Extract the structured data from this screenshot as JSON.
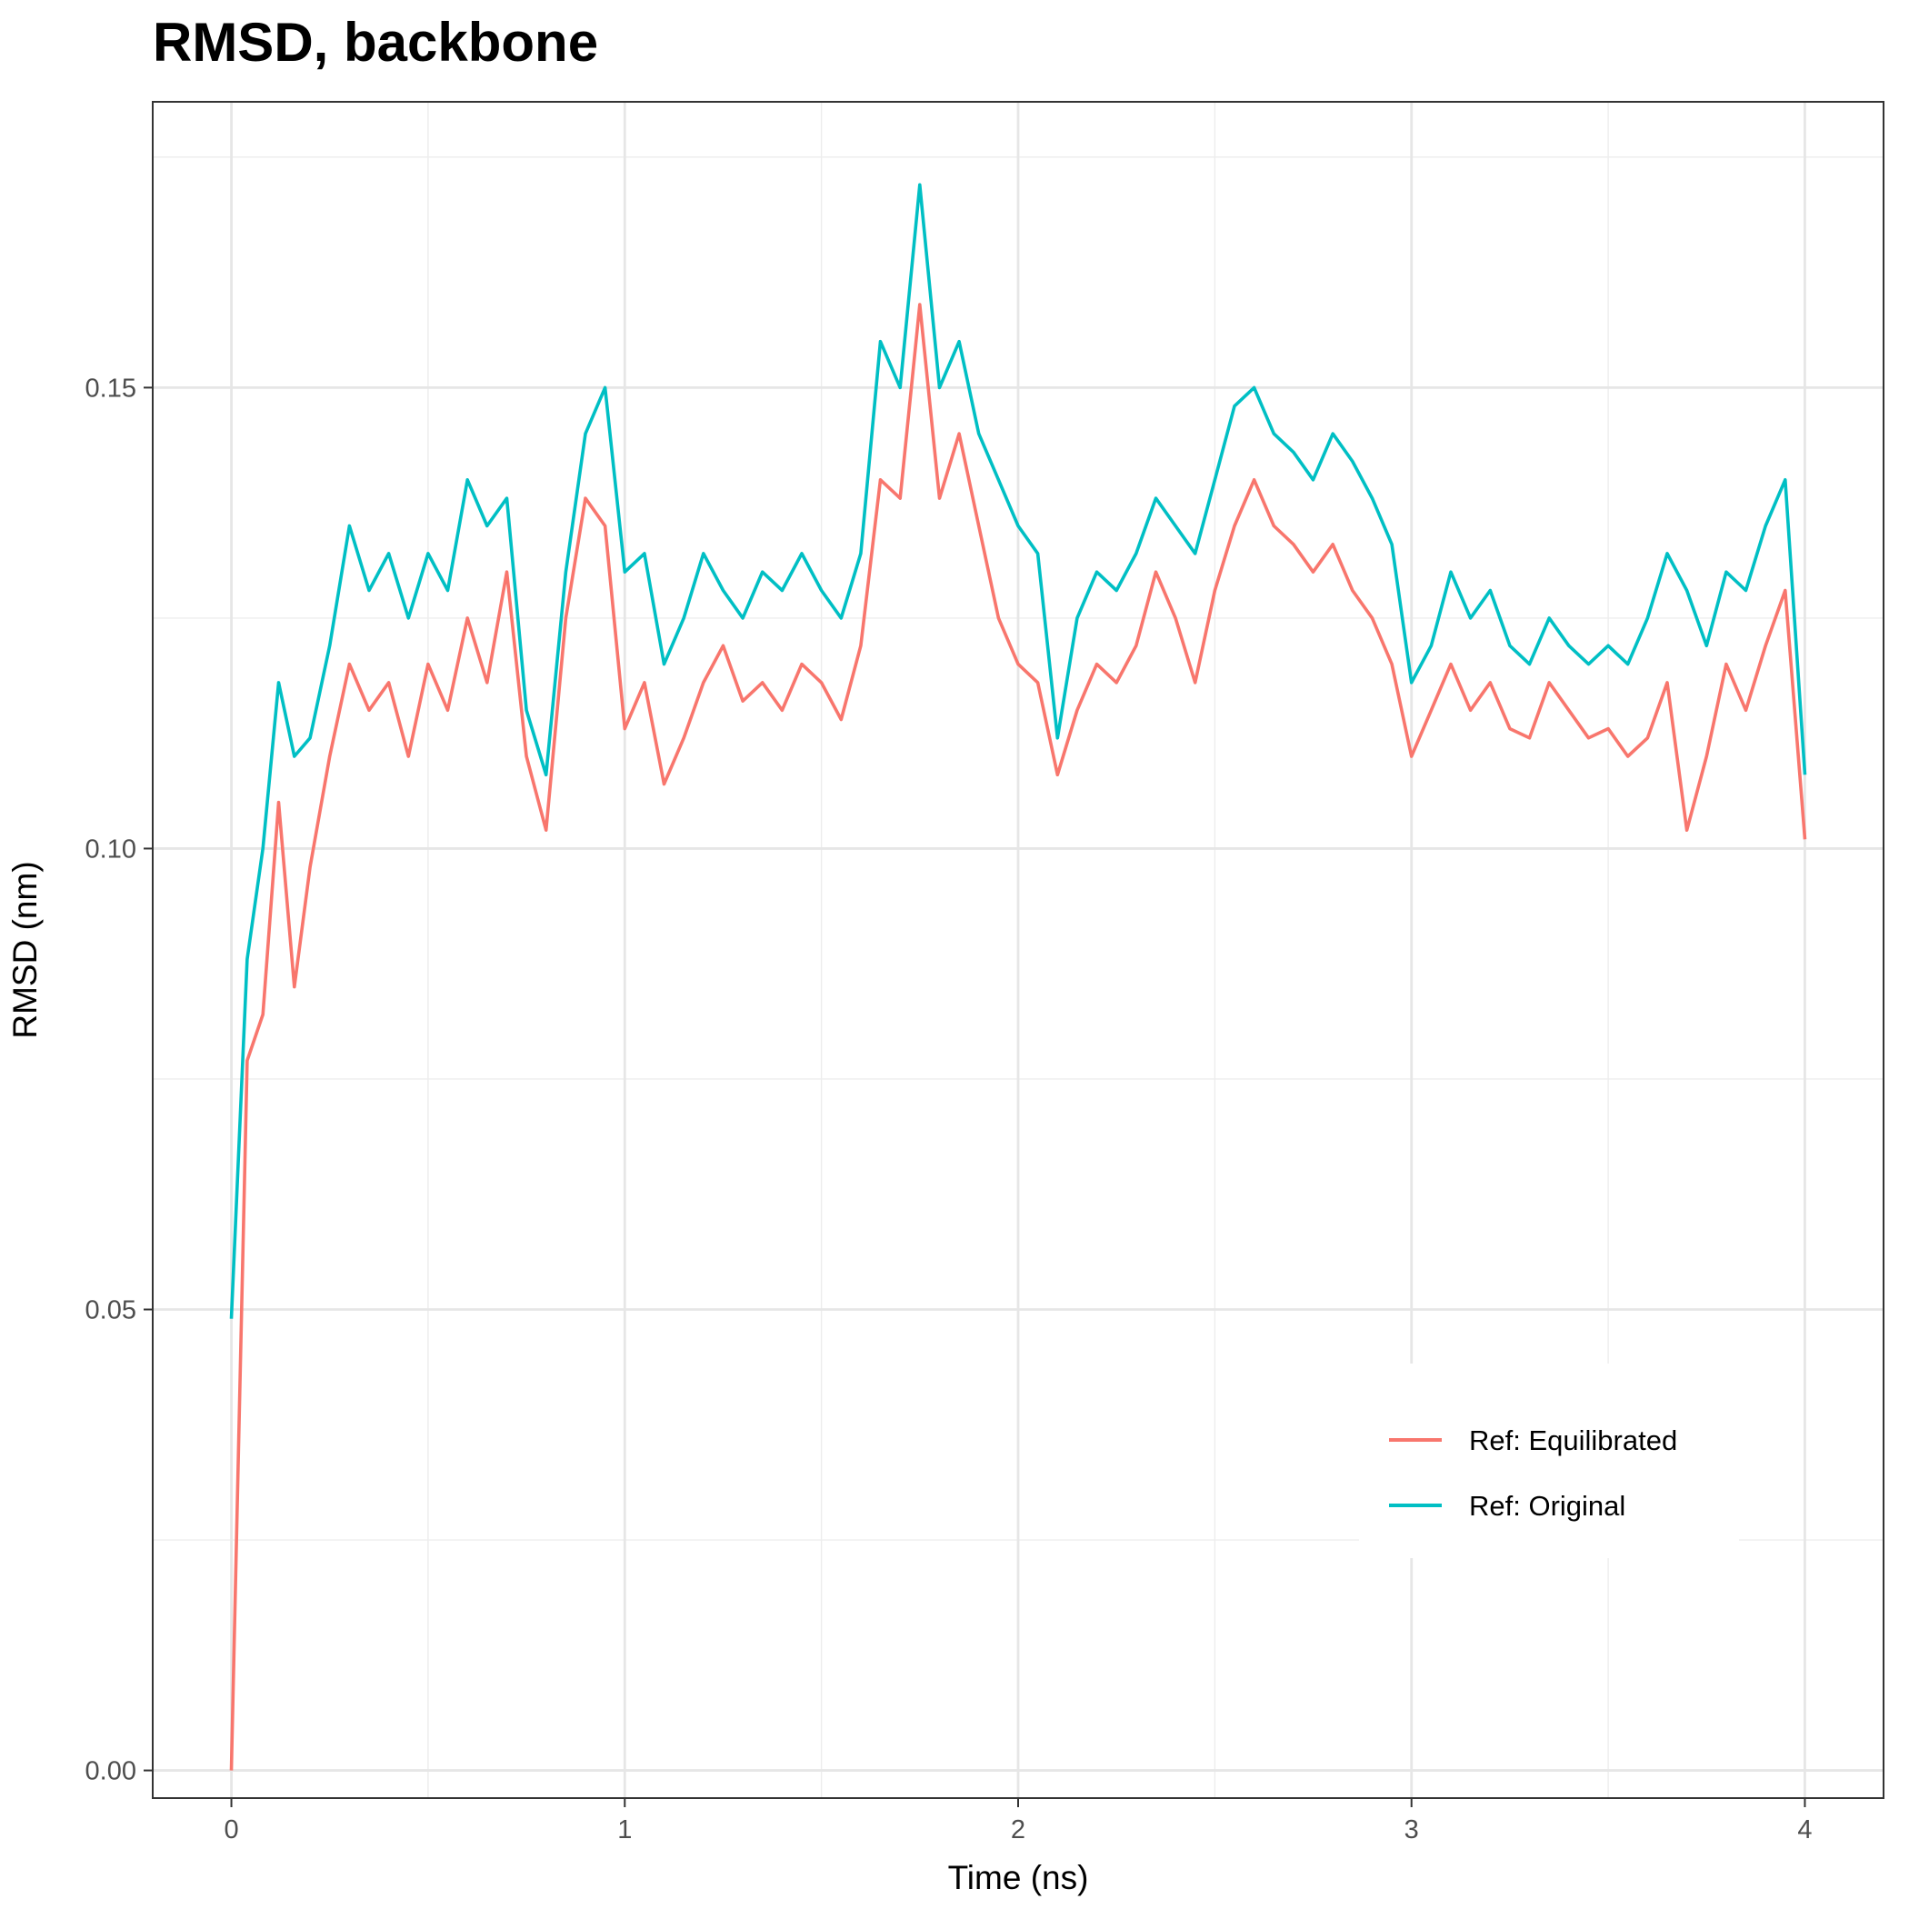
{
  "chart_data": {
    "type": "line",
    "title": "RMSD, backbone",
    "xlabel": "Time (ns)",
    "ylabel": "RMSD (nm)",
    "xlim": [
      -0.2,
      4.2
    ],
    "ylim": [
      -0.003,
      0.181
    ],
    "x_ticks": [
      0,
      1,
      2,
      3,
      4
    ],
    "x_tick_labels": [
      "0",
      "1",
      "2",
      "3",
      "4"
    ],
    "y_ticks": [
      0,
      0.05,
      0.1,
      0.15
    ],
    "y_tick_labels": [
      "0.00",
      "0.05",
      "0.10",
      "0.15"
    ],
    "grid": true,
    "legend_position": "bottom-right inside",
    "series": [
      {
        "name": "Ref: Equilibrated",
        "color": "#F8766D",
        "x": [
          0,
          0.04,
          0.08,
          0.12,
          0.16,
          0.2,
          0.25,
          0.3,
          0.35,
          0.4,
          0.45,
          0.5,
          0.55,
          0.6,
          0.65,
          0.7,
          0.75,
          0.8,
          0.85,
          0.9,
          0.95,
          1.0,
          1.05,
          1.1,
          1.15,
          1.2,
          1.25,
          1.3,
          1.35,
          1.4,
          1.45,
          1.5,
          1.55,
          1.6,
          1.65,
          1.7,
          1.75,
          1.8,
          1.85,
          1.9,
          1.95,
          2.0,
          2.05,
          2.1,
          2.15,
          2.2,
          2.25,
          2.3,
          2.35,
          2.4,
          2.45,
          2.5,
          2.55,
          2.6,
          2.65,
          2.7,
          2.75,
          2.8,
          2.85,
          2.9,
          2.95,
          3.0,
          3.05,
          3.1,
          3.15,
          3.2,
          3.25,
          3.3,
          3.35,
          3.4,
          3.45,
          3.5,
          3.55,
          3.6,
          3.65,
          3.7,
          3.75,
          3.8,
          3.85,
          3.9,
          3.95,
          4.0
        ],
        "y": [
          0.0,
          0.077,
          0.082,
          0.105,
          0.085,
          0.098,
          0.11,
          0.12,
          0.115,
          0.118,
          0.11,
          0.12,
          0.115,
          0.125,
          0.118,
          0.13,
          0.11,
          0.102,
          0.125,
          0.138,
          0.135,
          0.113,
          0.118,
          0.107,
          0.112,
          0.118,
          0.122,
          0.116,
          0.118,
          0.115,
          0.12,
          0.118,
          0.114,
          0.122,
          0.14,
          0.138,
          0.159,
          0.138,
          0.145,
          0.135,
          0.125,
          0.12,
          0.118,
          0.108,
          0.115,
          0.12,
          0.118,
          0.122,
          0.13,
          0.125,
          0.118,
          0.128,
          0.135,
          0.14,
          0.135,
          0.133,
          0.13,
          0.133,
          0.128,
          0.125,
          0.12,
          0.11,
          0.115,
          0.12,
          0.115,
          0.118,
          0.113,
          0.112,
          0.118,
          0.115,
          0.112,
          0.113,
          0.11,
          0.112,
          0.118,
          0.102,
          0.11,
          0.12,
          0.115,
          0.122,
          0.128,
          0.101
        ]
      },
      {
        "name": "Ref: Original",
        "color": "#00BFC4",
        "x": [
          0,
          0.04,
          0.08,
          0.12,
          0.16,
          0.2,
          0.25,
          0.3,
          0.35,
          0.4,
          0.45,
          0.5,
          0.55,
          0.6,
          0.65,
          0.7,
          0.75,
          0.8,
          0.85,
          0.9,
          0.95,
          1.0,
          1.05,
          1.1,
          1.15,
          1.2,
          1.25,
          1.3,
          1.35,
          1.4,
          1.45,
          1.5,
          1.55,
          1.6,
          1.65,
          1.7,
          1.75,
          1.8,
          1.85,
          1.9,
          1.95,
          2.0,
          2.05,
          2.1,
          2.15,
          2.2,
          2.25,
          2.3,
          2.35,
          2.4,
          2.45,
          2.5,
          2.55,
          2.6,
          2.65,
          2.7,
          2.75,
          2.8,
          2.85,
          2.9,
          2.95,
          3.0,
          3.05,
          3.1,
          3.15,
          3.2,
          3.25,
          3.3,
          3.35,
          3.4,
          3.45,
          3.5,
          3.55,
          3.6,
          3.65,
          3.7,
          3.75,
          3.8,
          3.85,
          3.9,
          3.95,
          4.0
        ],
        "y": [
          0.049,
          0.088,
          0.1,
          0.118,
          0.11,
          0.112,
          0.122,
          0.135,
          0.128,
          0.132,
          0.125,
          0.132,
          0.128,
          0.14,
          0.135,
          0.138,
          0.115,
          0.108,
          0.13,
          0.145,
          0.15,
          0.13,
          0.132,
          0.12,
          0.125,
          0.132,
          0.128,
          0.125,
          0.13,
          0.128,
          0.132,
          0.128,
          0.125,
          0.132,
          0.155,
          0.15,
          0.172,
          0.15,
          0.155,
          0.145,
          0.14,
          0.135,
          0.132,
          0.112,
          0.125,
          0.13,
          0.128,
          0.132,
          0.138,
          0.135,
          0.132,
          0.14,
          0.148,
          0.15,
          0.145,
          0.143,
          0.14,
          0.145,
          0.142,
          0.138,
          0.133,
          0.118,
          0.122,
          0.13,
          0.125,
          0.128,
          0.122,
          0.12,
          0.125,
          0.122,
          0.12,
          0.122,
          0.12,
          0.125,
          0.132,
          0.128,
          0.122,
          0.13,
          0.128,
          0.135,
          0.14,
          0.108
        ]
      }
    ]
  }
}
